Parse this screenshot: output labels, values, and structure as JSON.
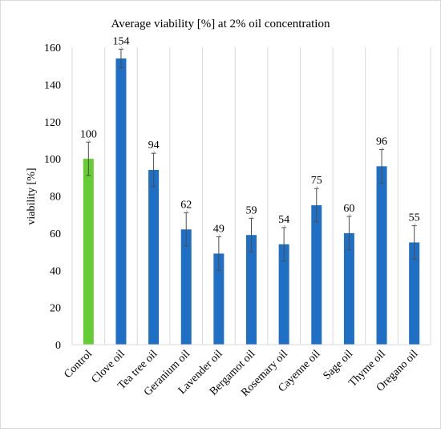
{
  "chart_data": {
    "type": "bar",
    "title": "Average viability [%] at 2% oil concentration",
    "xlabel": "",
    "ylabel": "viability [%]",
    "ylim": [
      0,
      160
    ],
    "yticks": [
      0,
      20,
      40,
      60,
      80,
      100,
      120,
      140,
      160
    ],
    "grid": "vertical",
    "categories": [
      "Control",
      "Clove oil",
      "Tea tree oil",
      "Geranium oil",
      "Lavender oil",
      "Bergamot oil",
      "Rosemary oil",
      "Cayenne oil",
      "Sage oil",
      "Thyme oil",
      "Oregano oil"
    ],
    "values": [
      100,
      154,
      94,
      62,
      49,
      59,
      54,
      75,
      60,
      96,
      55
    ],
    "data_labels": [
      "100",
      "154",
      "94",
      "62",
      "49",
      "59",
      "54",
      "75",
      "60",
      "96",
      "55"
    ],
    "error_bars": [
      9,
      5,
      9,
      9,
      9,
      9,
      9,
      9,
      9,
      9,
      9
    ],
    "colors": [
      "#66cc33",
      "#1f6fc5",
      "#1f6fc5",
      "#1f6fc5",
      "#1f6fc5",
      "#1f6fc5",
      "#1f6fc5",
      "#1f6fc5",
      "#1f6fc5",
      "#1f6fc5",
      "#1f6fc5"
    ]
  }
}
